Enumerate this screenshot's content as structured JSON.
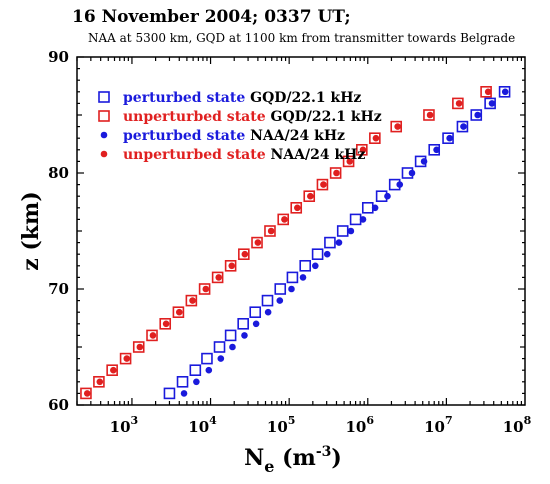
{
  "chart_data": {
    "type": "scatter",
    "title": "16 November 2004; 0337 UT;",
    "subtitle": "NAA at 5300 km, GQD at 1100 km from transmitter towards Belgrade",
    "xlabel_main": "N",
    "xlabel_sub": "e",
    "xlabel_unit_open": " (m",
    "xlabel_unit_sup": "-3",
    "xlabel_unit_close": ")",
    "ylabel": "z (km)",
    "x_scale": "log",
    "xlim": [
      200,
      100000000
    ],
    "ylim": [
      60,
      90
    ],
    "x_ticks": [
      {
        "value": 1000,
        "base": "10",
        "exp": "3"
      },
      {
        "value": 10000,
        "base": "10",
        "exp": "4"
      },
      {
        "value": 100000,
        "base": "10",
        "exp": "5"
      },
      {
        "value": 1000000,
        "base": "10",
        "exp": "6"
      },
      {
        "value": 10000000,
        "base": "10",
        "exp": "7"
      },
      {
        "value": 100000000,
        "base": "10",
        "exp": "8"
      }
    ],
    "y_ticks": [
      {
        "value": 60,
        "label": "60"
      },
      {
        "value": 70,
        "label": "70"
      },
      {
        "value": 80,
        "label": "80"
      },
      {
        "value": 90,
        "label": "90"
      }
    ],
    "legend_position": "top-left",
    "series": [
      {
        "legend_state": "perturbed state",
        "legend_signal": "GQD/22.1 kHz",
        "marker": "open-square",
        "color": "#1a1adc",
        "text_color": "#1a1adc",
        "points": [
          {
            "x": 3000,
            "y": 61
          },
          {
            "x": 4400,
            "y": 62
          },
          {
            "x": 6400,
            "y": 63
          },
          {
            "x": 9000,
            "y": 64
          },
          {
            "x": 13000,
            "y": 65
          },
          {
            "x": 18000,
            "y": 66
          },
          {
            "x": 26000,
            "y": 67
          },
          {
            "x": 37000,
            "y": 68
          },
          {
            "x": 53000,
            "y": 69
          },
          {
            "x": 77000,
            "y": 70
          },
          {
            "x": 110000,
            "y": 71
          },
          {
            "x": 160000,
            "y": 72
          },
          {
            "x": 230000,
            "y": 73
          },
          {
            "x": 330000,
            "y": 74
          },
          {
            "x": 480000,
            "y": 75
          },
          {
            "x": 700000,
            "y": 76
          },
          {
            "x": 1000000,
            "y": 77
          },
          {
            "x": 1500000,
            "y": 78
          },
          {
            "x": 2200000,
            "y": 79
          },
          {
            "x": 3200000,
            "y": 80
          },
          {
            "x": 4700000,
            "y": 81
          },
          {
            "x": 7000000,
            "y": 82
          },
          {
            "x": 10500000,
            "y": 83
          },
          {
            "x": 16000000,
            "y": 84
          },
          {
            "x": 24000000,
            "y": 85
          },
          {
            "x": 36000000,
            "y": 86
          },
          {
            "x": 55000000,
            "y": 87
          }
        ]
      },
      {
        "legend_state": "unperturbed state",
        "legend_signal": "GQD/22.1 kHz",
        "marker": "open-square",
        "color": "#e02020",
        "text_color": "#e02020",
        "points": [
          {
            "x": 260,
            "y": 61
          },
          {
            "x": 380,
            "y": 62
          },
          {
            "x": 560,
            "y": 63
          },
          {
            "x": 830,
            "y": 64
          },
          {
            "x": 1220,
            "y": 65
          },
          {
            "x": 1800,
            "y": 66
          },
          {
            "x": 2650,
            "y": 67
          },
          {
            "x": 3900,
            "y": 68
          },
          {
            "x": 5700,
            "y": 69
          },
          {
            "x": 8400,
            "y": 70
          },
          {
            "x": 12300,
            "y": 71
          },
          {
            "x": 18000,
            "y": 72
          },
          {
            "x": 26500,
            "y": 73
          },
          {
            "x": 39000,
            "y": 74
          },
          {
            "x": 57000,
            "y": 75
          },
          {
            "x": 84000,
            "y": 76
          },
          {
            "x": 123000,
            "y": 77
          },
          {
            "x": 180000,
            "y": 78
          },
          {
            "x": 265000,
            "y": 79
          },
          {
            "x": 390000,
            "y": 80
          },
          {
            "x": 570000,
            "y": 81
          },
          {
            "x": 840000,
            "y": 82
          },
          {
            "x": 1230000,
            "y": 83
          },
          {
            "x": 2300000,
            "y": 84
          },
          {
            "x": 6000000,
            "y": 85
          },
          {
            "x": 14000000,
            "y": 86
          },
          {
            "x": 32000000,
            "y": 87
          }
        ]
      },
      {
        "legend_state": "perturbed state",
        "legend_signal": "NAA/24 kHz",
        "marker": "filled-circle",
        "color": "#1a1adc",
        "text_color": "#1a1adc",
        "points": [
          {
            "x": 4600,
            "y": 61
          },
          {
            "x": 6600,
            "y": 62
          },
          {
            "x": 9500,
            "y": 63
          },
          {
            "x": 13500,
            "y": 64
          },
          {
            "x": 19000,
            "y": 65
          },
          {
            "x": 27000,
            "y": 66
          },
          {
            "x": 38000,
            "y": 67
          },
          {
            "x": 54000,
            "y": 68
          },
          {
            "x": 76000,
            "y": 69
          },
          {
            "x": 107000,
            "y": 70
          },
          {
            "x": 150000,
            "y": 71
          },
          {
            "x": 215000,
            "y": 72
          },
          {
            "x": 305000,
            "y": 73
          },
          {
            "x": 430000,
            "y": 74
          },
          {
            "x": 610000,
            "y": 75
          },
          {
            "x": 870000,
            "y": 76
          },
          {
            "x": 1240000,
            "y": 77
          },
          {
            "x": 1780000,
            "y": 78
          },
          {
            "x": 2550000,
            "y": 79
          },
          {
            "x": 3650000,
            "y": 80
          },
          {
            "x": 5200000,
            "y": 81
          },
          {
            "x": 7500000,
            "y": 82
          },
          {
            "x": 11000000,
            "y": 83
          },
          {
            "x": 16500000,
            "y": 84
          },
          {
            "x": 25000000,
            "y": 85
          },
          {
            "x": 38000000,
            "y": 86
          },
          {
            "x": 56000000,
            "y": 87
          }
        ]
      },
      {
        "legend_state": "unperturbed state",
        "legend_signal": "NAA/24 kHz",
        "marker": "filled-circle",
        "color": "#e02020",
        "text_color": "#e02020",
        "points": [
          {
            "x": 270,
            "y": 61
          },
          {
            "x": 390,
            "y": 62
          },
          {
            "x": 580,
            "y": 63
          },
          {
            "x": 860,
            "y": 64
          },
          {
            "x": 1260,
            "y": 65
          },
          {
            "x": 1850,
            "y": 66
          },
          {
            "x": 2720,
            "y": 67
          },
          {
            "x": 4000,
            "y": 68
          },
          {
            "x": 5900,
            "y": 69
          },
          {
            "x": 8700,
            "y": 70
          },
          {
            "x": 12700,
            "y": 71
          },
          {
            "x": 18600,
            "y": 72
          },
          {
            "x": 27300,
            "y": 73
          },
          {
            "x": 40000,
            "y": 74
          },
          {
            "x": 59000,
            "y": 75
          },
          {
            "x": 87000,
            "y": 76
          },
          {
            "x": 127000,
            "y": 77
          },
          {
            "x": 186000,
            "y": 78
          },
          {
            "x": 273000,
            "y": 79
          },
          {
            "x": 400000,
            "y": 80
          },
          {
            "x": 590000,
            "y": 81
          },
          {
            "x": 870000,
            "y": 82
          },
          {
            "x": 1270000,
            "y": 83
          },
          {
            "x": 2400000,
            "y": 84
          },
          {
            "x": 6200000,
            "y": 85
          },
          {
            "x": 14500000,
            "y": 86
          },
          {
            "x": 34000000,
            "y": 87
          }
        ]
      }
    ]
  }
}
